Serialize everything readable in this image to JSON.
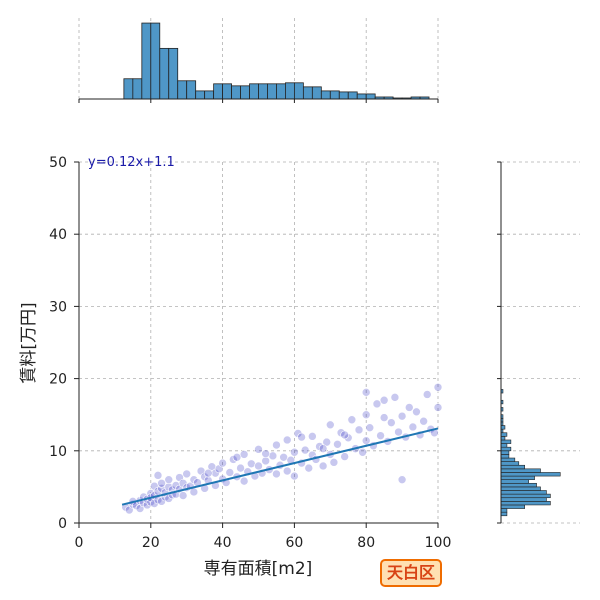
{
  "chart_data": {
    "type": "scatter",
    "xlabel": "専有面積[m2]",
    "ylabel": "賃料[万円]",
    "xlim": [
      0,
      100
    ],
    "ylim": [
      0,
      50
    ],
    "x_ticks": [
      "0",
      "20",
      "40",
      "60",
      "80",
      "100"
    ],
    "y_ticks": [
      "0",
      "10",
      "20",
      "30",
      "40",
      "50"
    ],
    "grid": true,
    "annotation": "y=0.12x+1.1",
    "badge": "天白区",
    "regression": {
      "slope": 0.12,
      "intercept": 1.1,
      "x_range": [
        12,
        100
      ]
    },
    "series": [
      {
        "points": [
          [
            13,
            2.2
          ],
          [
            14,
            1.8
          ],
          [
            15,
            2.6
          ],
          [
            15,
            3.0
          ],
          [
            16,
            2.4
          ],
          [
            17,
            3.1
          ],
          [
            17,
            2.0
          ],
          [
            18,
            2.8
          ],
          [
            18,
            3.6
          ],
          [
            19,
            2.5
          ],
          [
            19,
            3.3
          ],
          [
            20,
            2.9
          ],
          [
            20,
            4.1
          ],
          [
            20,
            3.5
          ],
          [
            21,
            2.7
          ],
          [
            21,
            3.8
          ],
          [
            21,
            5.1
          ],
          [
            22,
            3.2
          ],
          [
            22,
            4.4
          ],
          [
            22,
            6.6
          ],
          [
            23,
            3.0
          ],
          [
            23,
            4.8
          ],
          [
            23,
            5.5
          ],
          [
            24,
            3.6
          ],
          [
            24,
            4.2
          ],
          [
            25,
            3.4
          ],
          [
            25,
            5.0
          ],
          [
            25,
            6.0
          ],
          [
            26,
            4.6
          ],
          [
            26,
            3.9
          ],
          [
            27,
            5.2
          ],
          [
            27,
            4.0
          ],
          [
            28,
            4.7
          ],
          [
            28,
            6.3
          ],
          [
            29,
            3.8
          ],
          [
            29,
            5.5
          ],
          [
            30,
            4.9
          ],
          [
            30,
            6.8
          ],
          [
            31,
            5.1
          ],
          [
            32,
            4.3
          ],
          [
            32,
            6.0
          ],
          [
            33,
            5.6
          ],
          [
            34,
            7.2
          ],
          [
            35,
            4.8
          ],
          [
            35,
            6.4
          ],
          [
            36,
            5.9
          ],
          [
            37,
            7.8
          ],
          [
            38,
            5.2
          ],
          [
            38,
            6.9
          ],
          [
            39,
            7.5
          ],
          [
            40,
            6.1
          ],
          [
            40,
            8.3
          ],
          [
            41,
            5.6
          ],
          [
            42,
            7.0
          ],
          [
            43,
            8.8
          ],
          [
            44,
            6.4
          ],
          [
            45,
            7.6
          ],
          [
            46,
            5.8
          ],
          [
            46,
            9.5
          ],
          [
            47,
            7.1
          ],
          [
            48,
            8.2
          ],
          [
            49,
            6.5
          ],
          [
            50,
            7.9
          ],
          [
            50,
            10.2
          ],
          [
            51,
            6.9
          ],
          [
            52,
            8.6
          ],
          [
            53,
            7.4
          ],
          [
            54,
            9.3
          ],
          [
            55,
            6.8
          ],
          [
            55,
            10.8
          ],
          [
            56,
            8.0
          ],
          [
            57,
            9.1
          ],
          [
            58,
            7.2
          ],
          [
            58,
            11.5
          ],
          [
            59,
            8.7
          ],
          [
            60,
            9.8
          ],
          [
            60,
            6.5
          ],
          [
            61,
            12.4
          ],
          [
            62,
            8.3
          ],
          [
            63,
            10.1
          ],
          [
            64,
            7.6
          ],
          [
            65,
            9.4
          ],
          [
            65,
            12.0
          ],
          [
            66,
            8.8
          ],
          [
            67,
            10.6
          ],
          [
            68,
            7.9
          ],
          [
            69,
            11.2
          ],
          [
            70,
            9.5
          ],
          [
            70,
            13.6
          ],
          [
            71,
            8.4
          ],
          [
            72,
            10.9
          ],
          [
            73,
            12.5
          ],
          [
            74,
            9.2
          ],
          [
            75,
            11.8
          ],
          [
            76,
            14.3
          ],
          [
            77,
            10.3
          ],
          [
            78,
            12.9
          ],
          [
            79,
            9.8
          ],
          [
            80,
            11.4
          ],
          [
            80,
            15.0
          ],
          [
            81,
            13.2
          ],
          [
            82,
            10.7
          ],
          [
            83,
            16.5
          ],
          [
            84,
            12.1
          ],
          [
            85,
            14.6
          ],
          [
            86,
            11.3
          ],
          [
            87,
            13.9
          ],
          [
            88,
            17.4
          ],
          [
            89,
            12.6
          ],
          [
            90,
            6.0
          ],
          [
            90,
            14.8
          ],
          [
            91,
            11.9
          ],
          [
            92,
            16.0
          ],
          [
            93,
            13.3
          ],
          [
            94,
            15.4
          ],
          [
            95,
            12.2
          ],
          [
            96,
            14.1
          ],
          [
            97,
            17.8
          ],
          [
            98,
            13.0
          ],
          [
            99,
            12.5
          ],
          [
            100,
            18.8
          ],
          [
            100,
            16.0
          ],
          [
            36,
            6.9
          ],
          [
            44,
            9.1
          ],
          [
            52,
            9.6
          ],
          [
            62,
            11.9
          ],
          [
            68,
            10.3
          ],
          [
            74,
            12.2
          ],
          [
            85,
            17.0
          ],
          [
            80,
            18.1
          ]
        ]
      }
    ],
    "top_histogram": {
      "bin_edges": [
        0,
        2.5,
        5,
        7.5,
        10,
        12.5,
        15,
        17.5,
        20,
        22.5,
        25,
        27.5,
        30,
        32.5,
        35,
        37.5,
        40,
        42.5,
        45,
        47.5,
        50,
        52.5,
        55,
        57.5,
        60,
        62.5,
        65,
        67.5,
        70,
        72.5,
        75,
        77.5,
        80,
        82.5,
        85,
        87.5,
        90,
        92.5,
        95,
        97.5,
        100
      ],
      "counts": [
        0,
        0,
        0,
        0,
        0,
        20,
        20,
        75,
        75,
        50,
        50,
        18,
        18,
        8,
        8,
        15,
        15,
        13,
        13,
        15,
        15,
        15,
        15,
        16,
        16,
        12,
        12,
        8,
        8,
        7,
        7,
        5,
        5,
        2,
        2,
        1,
        1,
        2,
        2,
        0
      ],
      "ymax": 80
    },
    "right_histogram": {
      "bin_edges": [
        0,
        0.5,
        1,
        1.5,
        2,
        2.5,
        3,
        3.5,
        4,
        4.5,
        5,
        5.5,
        6,
        6.5,
        7,
        7.5,
        8,
        8.5,
        9,
        9.5,
        10,
        10.5,
        11,
        11.5,
        12,
        12.5,
        13,
        13.5,
        14,
        14.5,
        15,
        15.5,
        16,
        16.5,
        17,
        17.5,
        18,
        18.5,
        19,
        19.5,
        20
      ],
      "counts": [
        0,
        0,
        3,
        3,
        12,
        25,
        23,
        25,
        23,
        20,
        18,
        14,
        17,
        30,
        20,
        12,
        9,
        7,
        4,
        4,
        5,
        3,
        5,
        2,
        3,
        1,
        2,
        1,
        1,
        1,
        0,
        1,
        0,
        1,
        0,
        0,
        1,
        0,
        0,
        0
      ],
      "xmax": 40
    }
  }
}
